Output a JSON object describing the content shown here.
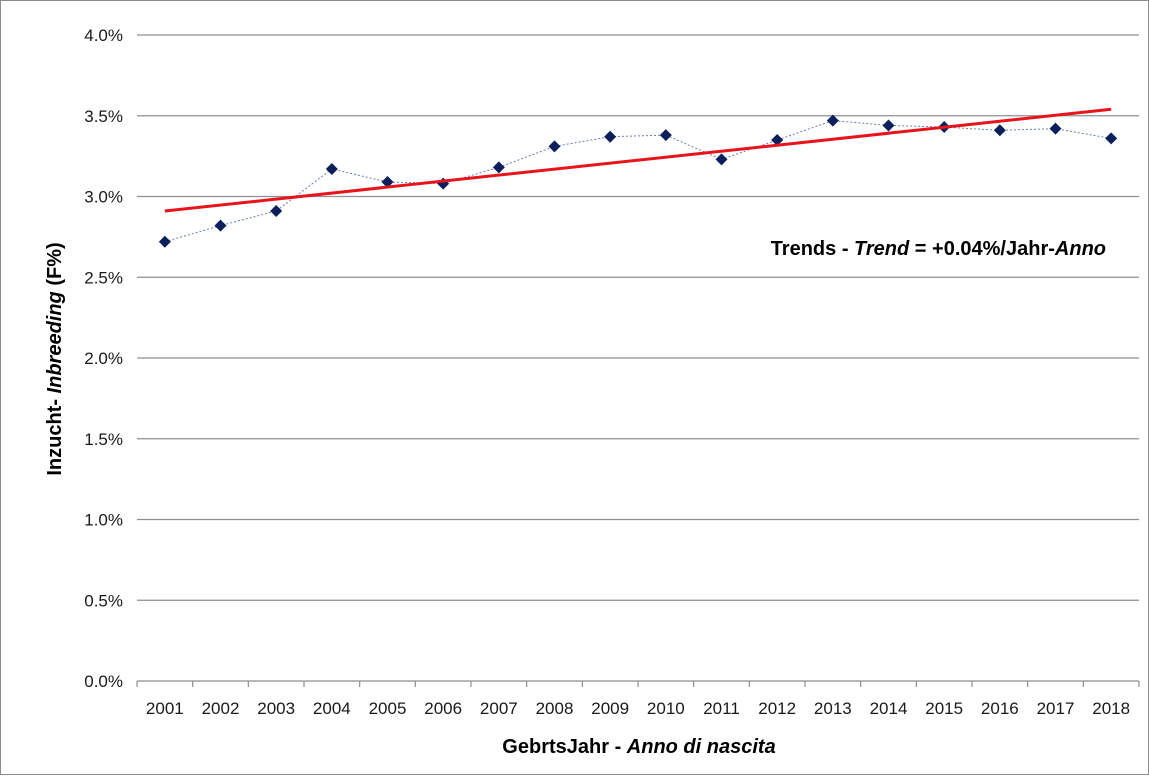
{
  "chart_data": {
    "type": "line",
    "x": [
      "2001",
      "2002",
      "2003",
      "2004",
      "2005",
      "2006",
      "2007",
      "2008",
      "2009",
      "2010",
      "2011",
      "2012",
      "2013",
      "2014",
      "2015",
      "2016",
      "2017",
      "2018"
    ],
    "series": [
      {
        "values": [
          2.72,
          2.82,
          2.91,
          3.17,
          3.09,
          3.08,
          3.18,
          3.31,
          3.37,
          3.38,
          3.23,
          3.35,
          3.47,
          3.44,
          3.43,
          3.41,
          3.42,
          3.36
        ],
        "color": "#0b1f5c",
        "marker": "diamond",
        "line_style": "dotted"
      }
    ],
    "trendline": {
      "start": 2.91,
      "end": 3.54,
      "color": "#e8141c"
    },
    "ylim": [
      0,
      4.0
    ],
    "y_ticks": [
      "0.0%",
      "0.5%",
      "1.0%",
      "1.5%",
      "2.0%",
      "2.5%",
      "3.0%",
      "3.5%",
      "4.0%"
    ],
    "xlabel": {
      "plain": "GebrtsJahr - ",
      "italic": "Anno di nascita"
    },
    "ylabel": {
      "plain": "Inzucht- ",
      "italic": "Inbreeding",
      "suffix": " (F%)"
    },
    "annotation": {
      "part1": "Trends - ",
      "part2_italic": "Trend",
      "part3": " = +0.04%/Jahr-",
      "part4_italic": "Anno"
    },
    "grid": true,
    "gridline_color": "#8f8f8f"
  }
}
